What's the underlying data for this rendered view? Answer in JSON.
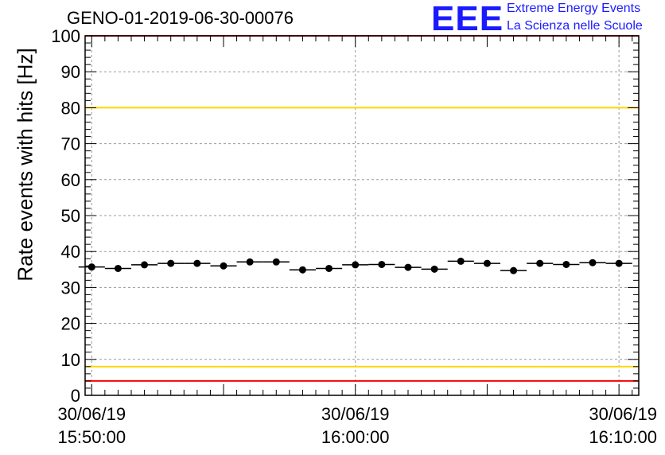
{
  "header": {
    "title": "GENO-01-2019-06-30-00076",
    "logo_text": "EEE",
    "logo_line1": "Extreme Energy Events",
    "logo_line2": "La Scienza nelle Scuole"
  },
  "colors": {
    "limit_red": "#ff0000",
    "limit_yellow": "#ffd700",
    "marker": "#000000",
    "grid": "#999999",
    "logo": "#1a1aff"
  },
  "chart_data": {
    "type": "scatter",
    "title": "GENO-01-2019-06-30-00076",
    "ylabel": "Rate events with hits [Hz]",
    "xlabel": "",
    "ylim": [
      0,
      100
    ],
    "yticks": [
      0,
      10,
      20,
      30,
      40,
      50,
      60,
      70,
      80,
      90,
      100
    ],
    "xlim": [
      "2019-06-30 15:49:45",
      "2019-06-30 16:10:45"
    ],
    "xticks": [
      {
        "date": "30/06/19",
        "time": "15:50:00"
      },
      {
        "date": "30/06/19",
        "time": "16:00:00"
      },
      {
        "date": "30/06/19",
        "time": "16:10:00"
      }
    ],
    "grid": true,
    "x": [
      "15:50:00",
      "15:51:00",
      "15:52:00",
      "15:53:00",
      "15:54:00",
      "15:55:00",
      "15:56:00",
      "15:57:00",
      "15:58:00",
      "15:59:00",
      "16:00:00",
      "16:01:00",
      "16:02:00",
      "16:03:00",
      "16:04:00",
      "16:05:00",
      "16:06:00",
      "16:07:00",
      "16:08:00",
      "16:09:00",
      "16:10:00"
    ],
    "values": [
      35.7,
      35.3,
      36.3,
      36.7,
      36.7,
      36.0,
      37.1,
      37.1,
      34.9,
      35.3,
      36.3,
      36.4,
      35.6,
      35.1,
      37.3,
      36.7,
      34.7,
      36.7,
      36.4,
      36.9,
      36.7
    ],
    "reference_lines": [
      {
        "value": 100,
        "color": "red"
      },
      {
        "value": 80,
        "color": "yellow"
      },
      {
        "value": 8,
        "color": "yellow"
      },
      {
        "value": 4,
        "color": "red"
      }
    ]
  }
}
